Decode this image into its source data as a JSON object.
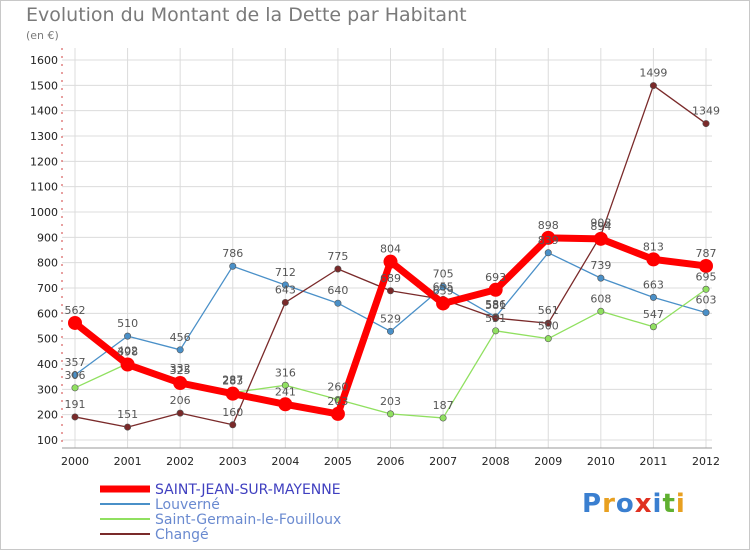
{
  "title": "Evolution du Montant de la Dette par Habitant",
  "subtitle": "(en €)",
  "logo_text": "Proxiti",
  "chart_data": {
    "type": "line",
    "x": [
      2000,
      2001,
      2002,
      2003,
      2004,
      2005,
      2006,
      2007,
      2008,
      2009,
      2010,
      2011,
      2012
    ],
    "y_ticks": [
      100,
      200,
      300,
      400,
      500,
      600,
      700,
      800,
      900,
      1000,
      1100,
      1200,
      1300,
      1400,
      1500,
      1600
    ],
    "ylim": [
      100,
      1600
    ],
    "grid": true,
    "legend_position": "bottom-left",
    "series": [
      {
        "name": "SAINT-JEAN-SUR-MAYENNE",
        "color": "#ff0000",
        "values": [
          562,
          398,
          325,
          283,
          241,
          203,
          804,
          639,
          693,
          898,
          894,
          813,
          787
        ]
      },
      {
        "name": "Louverné",
        "color": "#4a90c8",
        "values": [
          357,
          510,
          456,
          786,
          712,
          640,
          529,
          705,
          586,
          839,
          739,
          663,
          603
        ]
      },
      {
        "name": "Saint-Germain-le-Fouilloux",
        "color": "#90e060",
        "values": [
          306,
          402,
          332,
          287,
          316,
          260,
          203,
          187,
          531,
          500,
          608,
          547,
          695
        ]
      },
      {
        "name": "Changé",
        "color": "#7a2a2a",
        "values": [
          191,
          151,
          206,
          160,
          643,
          775,
          689,
          655,
          581,
          561,
          908,
          1499,
          1349
        ]
      }
    ]
  }
}
